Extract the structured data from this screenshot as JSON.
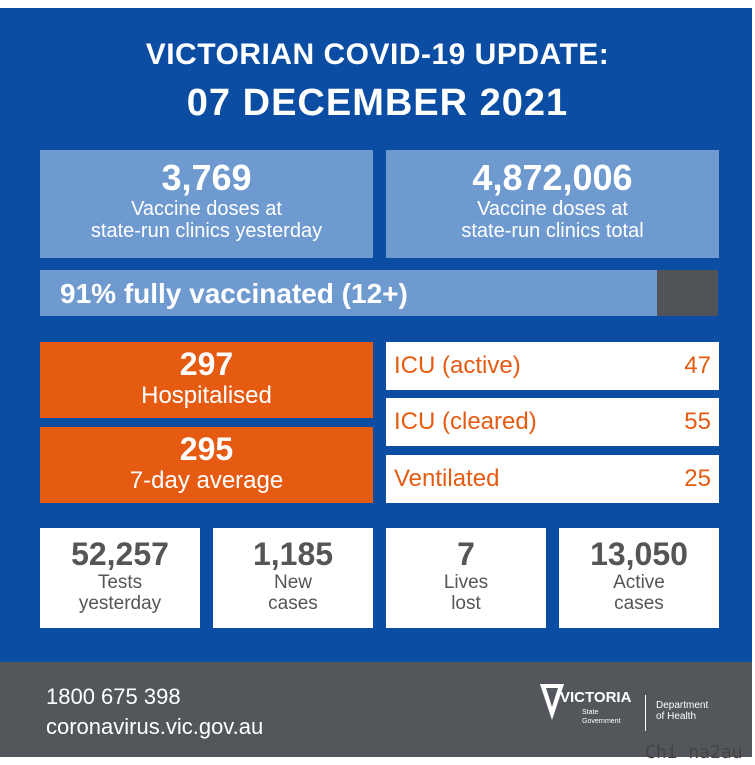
{
  "header": {
    "title": "VICTORIAN COVID-19 UPDATE:",
    "date": "07 DECEMBER 2021"
  },
  "vaccine": {
    "yesterday_value": "3,769",
    "yesterday_label_1": "Vaccine doses at",
    "yesterday_label_2": "state-run clinics yesterday",
    "total_value": "4,872,006",
    "total_label_1": "Vaccine doses at",
    "total_label_2": "state-run clinics total",
    "fully_vaccinated_text": "91% fully vaccinated (12+)",
    "fully_vaccinated_fraction": 0.91
  },
  "hospital": {
    "hospitalised_value": "297",
    "hospitalised_label": "Hospitalised",
    "avg_value": "295",
    "avg_label": "7-day average",
    "icu_active_label": "ICU (active)",
    "icu_active_value": "47",
    "icu_cleared_label": "ICU (cleared)",
    "icu_cleared_value": "55",
    "ventilated_label": "Ventilated",
    "ventilated_value": "25"
  },
  "stats": [
    {
      "value": "52,257",
      "label_1": "Tests",
      "label_2": "yesterday"
    },
    {
      "value": "1,185",
      "label_1": "New",
      "label_2": "cases"
    },
    {
      "value": "7",
      "label_1": "Lives",
      "label_2": "lost"
    },
    {
      "value": "13,050",
      "label_1": "Active",
      "label_2": "cases"
    }
  ],
  "footer": {
    "phone": "1800 675 398",
    "url": "coronavirus.vic.gov.au",
    "logo_text": "VICTORIA",
    "logo_sub_1": "State",
    "logo_sub_2": "Government",
    "dept_1": "Department",
    "dept_2": "of Health"
  },
  "watermark": "Chi na2au",
  "colors": {
    "background_blue": "#0b4da2",
    "light_blue": "#6f9ad0",
    "orange": "#e55b12",
    "footer_gray": "#53575b"
  }
}
